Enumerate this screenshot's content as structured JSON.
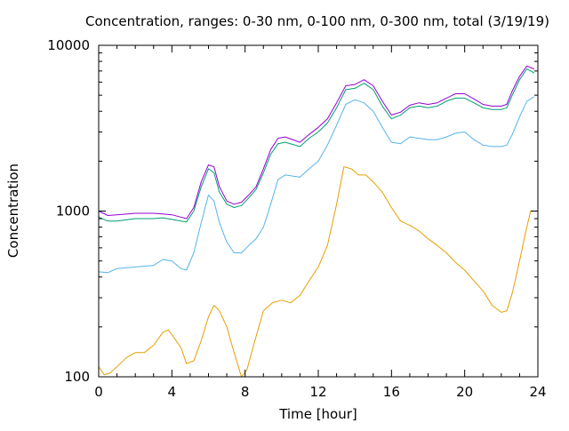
{
  "chart_data": {
    "type": "line",
    "title": "Concentration, ranges: 0-30 nm, 0-100 nm, 0-300 nm, total (3/19/19)",
    "xlabel": "Time [hour]",
    "ylabel": "Concentration",
    "xlim": [
      0,
      24
    ],
    "ylim": [
      100,
      10000
    ],
    "y_scale": "log",
    "grid": false,
    "legend": "none",
    "x_ticks": [
      "0",
      "4",
      "8",
      "12",
      "16",
      "20",
      "24"
    ],
    "y_ticks": [
      "100",
      "1000",
      "10000"
    ],
    "series": [
      {
        "color": "#e69f00",
        "x": [
          0,
          0.3,
          0.6,
          1.0,
          1.5,
          2.0,
          2.5,
          3.0,
          3.5,
          3.8,
          4.0,
          4.5,
          4.8,
          5.2,
          5.6,
          6.0,
          6.3,
          6.6,
          7.0,
          7.4,
          7.8,
          8.1,
          8.5,
          9.0,
          9.5,
          10.0,
          10.5,
          11.0,
          11.5,
          12.0,
          12.5,
          13.0,
          13.4,
          13.8,
          14.2,
          14.6,
          15.0,
          15.5,
          16.0,
          16.5,
          17.0,
          17.5,
          18.0,
          18.5,
          19.0,
          19.5,
          20.0,
          20.5,
          21.0,
          21.5,
          22.0,
          22.3,
          22.6,
          23.0,
          23.3,
          23.6,
          23.8
        ],
        "values": [
          115,
          103,
          105,
          115,
          130,
          140,
          140,
          155,
          185,
          192,
          180,
          150,
          120,
          125,
          165,
          230,
          270,
          250,
          200,
          140,
          100,
          110,
          160,
          250,
          280,
          290,
          280,
          310,
          380,
          460,
          620,
          1100,
          1850,
          1800,
          1650,
          1650,
          1500,
          1300,
          1050,
          870,
          820,
          760,
          680,
          620,
          560,
          490,
          440,
          380,
          330,
          270,
          245,
          250,
          320,
          500,
          720,
          1000,
          1000
        ]
      },
      {
        "color": "#56b4e9",
        "x": [
          0,
          0.5,
          1.0,
          2.0,
          3.0,
          3.5,
          4.0,
          4.5,
          4.8,
          5.2,
          5.6,
          6.0,
          6.3,
          6.6,
          7.0,
          7.4,
          7.8,
          8.2,
          8.6,
          9.0,
          9.4,
          9.8,
          10.2,
          11.0,
          11.5,
          12.0,
          12.5,
          13.0,
          13.5,
          14.0,
          14.5,
          15.0,
          15.5,
          16.0,
          16.5,
          17.0,
          17.5,
          18.0,
          18.5,
          19.0,
          19.5,
          20.0,
          20.5,
          21.0,
          21.5,
          22.0,
          22.3,
          22.6,
          23.0,
          23.4,
          23.8
        ],
        "values": [
          430,
          425,
          450,
          460,
          470,
          510,
          500,
          450,
          440,
          560,
          850,
          1250,
          1150,
          850,
          650,
          560,
          560,
          620,
          680,
          800,
          1100,
          1550,
          1650,
          1600,
          1800,
          2000,
          2500,
          3300,
          4400,
          4700,
          4500,
          4000,
          3200,
          2600,
          2550,
          2800,
          2750,
          2700,
          2700,
          2800,
          2950,
          3000,
          2700,
          2500,
          2450,
          2450,
          2500,
          2900,
          3700,
          4600,
          4900
        ]
      },
      {
        "color": "#009e73",
        "x": [
          0,
          0.5,
          1.0,
          2.0,
          3.0,
          3.5,
          4.0,
          4.5,
          4.8,
          5.2,
          5.6,
          6.0,
          6.3,
          6.6,
          7.0,
          7.4,
          7.8,
          8.2,
          8.6,
          9.0,
          9.4,
          9.8,
          10.2,
          11.0,
          11.5,
          12.0,
          12.5,
          13.0,
          13.5,
          14.0,
          14.5,
          15.0,
          15.5,
          16.0,
          16.5,
          17.0,
          17.5,
          18.0,
          18.5,
          19.0,
          19.5,
          20.0,
          20.5,
          21.0,
          21.5,
          22.0,
          22.3,
          22.6,
          23.0,
          23.4,
          23.8
        ],
        "values": [
          920,
          870,
          870,
          900,
          900,
          910,
          890,
          870,
          860,
          1000,
          1400,
          1800,
          1700,
          1300,
          1100,
          1050,
          1080,
          1200,
          1350,
          1700,
          2200,
          2550,
          2600,
          2450,
          2750,
          3000,
          3400,
          4200,
          5400,
          5500,
          5900,
          5400,
          4300,
          3600,
          3800,
          4200,
          4300,
          4200,
          4300,
          4600,
          4800,
          4800,
          4500,
          4200,
          4100,
          4100,
          4200,
          5000,
          6200,
          7200,
          6800
        ]
      },
      {
        "color": "#9400d3",
        "x": [
          0,
          0.5,
          1.0,
          2.0,
          3.0,
          3.5,
          4.0,
          4.5,
          4.8,
          5.2,
          5.6,
          6.0,
          6.3,
          6.6,
          7.0,
          7.4,
          7.8,
          8.2,
          8.6,
          9.0,
          9.4,
          9.8,
          10.2,
          11.0,
          11.5,
          12.0,
          12.5,
          13.0,
          13.5,
          14.0,
          14.5,
          15.0,
          15.5,
          16.0,
          16.5,
          17.0,
          17.5,
          18.0,
          18.5,
          19.0,
          19.5,
          20.0,
          20.5,
          21.0,
          21.5,
          22.0,
          22.3,
          22.6,
          23.0,
          23.4,
          23.8
        ],
        "values": [
          1000,
          940,
          950,
          970,
          970,
          960,
          950,
          920,
          900,
          1050,
          1500,
          1900,
          1850,
          1400,
          1150,
          1100,
          1130,
          1250,
          1400,
          1800,
          2350,
          2750,
          2800,
          2600,
          2900,
          3200,
          3600,
          4500,
          5700,
          5800,
          6200,
          5700,
          4600,
          3800,
          3950,
          4350,
          4500,
          4400,
          4500,
          4800,
          5100,
          5100,
          4750,
          4400,
          4300,
          4300,
          4400,
          5300,
          6500,
          7500,
          7200
        ]
      }
    ]
  }
}
